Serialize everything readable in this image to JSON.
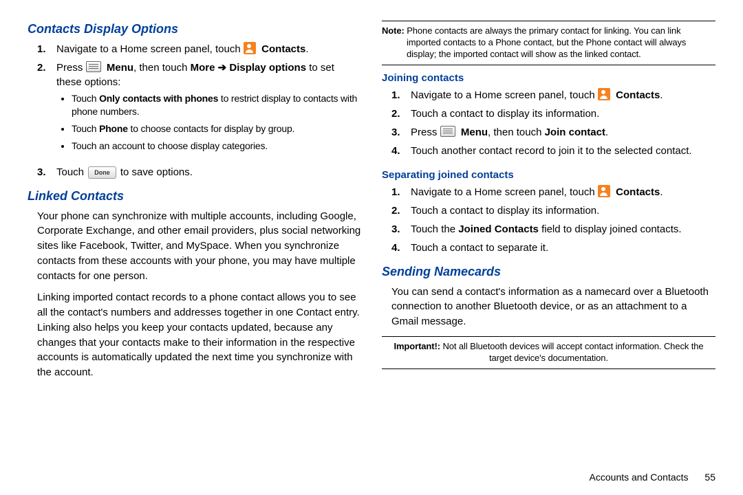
{
  "left": {
    "section1_title": "Contacts Display Options",
    "step1a": "Navigate to a Home screen panel, touch ",
    "step1b": "Contacts",
    "step2a": "Press ",
    "step2b": "Menu",
    "step2c": ", then touch ",
    "step2d": "More",
    "step2e": "Display options",
    "step2f": " to set these options:",
    "bullet1a": "Touch ",
    "bullet1b": "Only contacts with phones",
    "bullet1c": " to restrict display to contacts with phone numbers.",
    "bullet2a": "Touch ",
    "bullet2b": "Phone",
    "bullet2c": " to choose contacts for display by group.",
    "bullet3": "Touch an account to choose display categories.",
    "step3a": "Touch ",
    "step3b": " to save options.",
    "done_label": "Done",
    "section2_title": "Linked Contacts",
    "para1": "Your phone can synchronize with multiple accounts, including Google, Corporate Exchange, and other email providers, plus social networking sites like Facebook, Twitter, and MySpace. When you synchronize contacts from these accounts with your phone, you may have multiple contacts for one person.",
    "para2": "Linking imported contact records to a phone contact allows you to see all the contact's numbers and addresses together in one Contact entry. Linking also helps you keep your contacts updated, because any changes that your contacts make to their information in the respective accounts is automatically updated the next time you synchronize with the account."
  },
  "right": {
    "note_label": "Note:",
    "note_text": " Phone contacts are always the primary contact for linking. You can link imported contacts to a Phone contact, but the Phone contact will always display; the imported contact will show as the linked contact.",
    "sub1_title": "Joining contacts",
    "j_step1a": "Navigate to a Home screen panel, touch ",
    "j_step1b": "Contacts",
    "j_step2": "Touch a contact to display its information.",
    "j_step3a": "Press ",
    "j_step3b": "Menu",
    "j_step3c": ", then touch ",
    "j_step3d": "Join contact",
    "j_step4": "Touch another contact record to join it to the selected contact.",
    "sub2_title": "Separating joined contacts",
    "s_step1a": "Navigate to a Home screen panel, touch ",
    "s_step1b": "Contacts",
    "s_step2": "Touch a contact to display its information.",
    "s_step3a": "Touch the ",
    "s_step3b": "Joined Contacts",
    "s_step3c": " field to display joined contacts.",
    "s_step4": "Touch a contact to separate it.",
    "section3_title": "Sending Namecards",
    "para3": "You can send a contact's information as a namecard over a Bluetooth connection to another Bluetooth device, or as an attachment to a Gmail message.",
    "important_label": "Important!:",
    "important_text": " Not all Bluetooth devices will accept contact information. Check the target device's documentation."
  },
  "footer": {
    "chapter": "Accounts and Contacts",
    "page": "55"
  },
  "colors": {
    "heading_blue": "#003f99",
    "icon_orange": "#f58220",
    "text_black": "#000000",
    "background": "#ffffff"
  }
}
